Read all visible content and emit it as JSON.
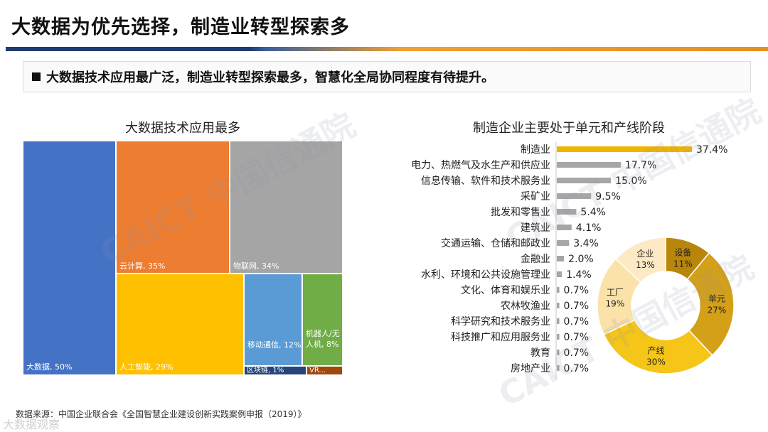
{
  "slide": {
    "title": "大数据为优先选择，制造业转型探索多",
    "callout": "大数据技术应用最广泛，制造业转型探索最多，智慧化全局协同程度有待提升。",
    "source": "数据来源：中国企业联合会《全国智慧企业建设创新实践案例申报（2019）》",
    "watermark": "CAICT 中国信通院",
    "brand": "大数据观察"
  },
  "colors": {
    "big_data": "#4472c4",
    "cloud": "#ed7d31",
    "iot": "#a5a5a5",
    "ai": "#ffc000",
    "mobile": "#5b9bd5",
    "robot": "#70ad47",
    "blockchain": "#264478",
    "vr": "#9e480e",
    "bar": "#a6a6a6",
    "bar_highlight": "#f0b400"
  },
  "chart_data": [
    {
      "type": "treemap",
      "title": "大数据技术应用最多",
      "items": [
        {
          "label": "大数据, 50%",
          "value": 50
        },
        {
          "label": "云计算, 35%",
          "value": 35
        },
        {
          "label": "物联网, 34%",
          "value": 34
        },
        {
          "label": "人工智能, 29%",
          "value": 29
        },
        {
          "label": "移动通信, 12%",
          "value": 12
        },
        {
          "label": "机器人/无人机, 8%",
          "value": 8
        },
        {
          "label": "区块链, 1%",
          "value": 1
        },
        {
          "label": "VR...",
          "value": null
        }
      ]
    },
    {
      "type": "bar",
      "orientation": "horizontal",
      "title": "制造企业主要处于单元和产线阶段",
      "categories": [
        "制造业",
        "电力、热燃气及水生产和供应业",
        "信息传输、软件和技术服务业",
        "采矿业",
        "批发和零售业",
        "建筑业",
        "交通运输、仓储和邮政业",
        "金融业",
        "水利、环境和公共设施管理业",
        "文化、体育和娱乐业",
        "农林牧渔业",
        "科学研究和技术服务业",
        "科技推广和应用服务业",
        "教育",
        "房地产业"
      ],
      "values": [
        37.4,
        17.7,
        15.0,
        9.5,
        5.4,
        4.1,
        3.4,
        2.0,
        1.4,
        0.7,
        0.7,
        0.7,
        0.7,
        0.7,
        0.7
      ],
      "value_labels": [
        "37.4%",
        "17.7%",
        "15.0%",
        "9.5%",
        "5.4%",
        "4.1%",
        "3.4%",
        "2.0%",
        "1.4%",
        "0.7%",
        "0.7%",
        "0.7%",
        "0.7%",
        "0.7%",
        "0.7%"
      ]
    },
    {
      "type": "pie",
      "style": "donut",
      "slices": [
        {
          "name": "设备",
          "value": 11,
          "label": "11%",
          "color": "#b8860b"
        },
        {
          "name": "单元",
          "value": 27,
          "label": "27%",
          "color": "#d4a017"
        },
        {
          "name": "产线",
          "value": 30,
          "label": "30%",
          "color": "#f5c518"
        },
        {
          "name": "工厂",
          "value": 19,
          "label": "19%",
          "color": "#fbe2a8"
        },
        {
          "name": "企业",
          "value": 13,
          "label": "13%",
          "color": "#fde9c4"
        }
      ]
    }
  ]
}
